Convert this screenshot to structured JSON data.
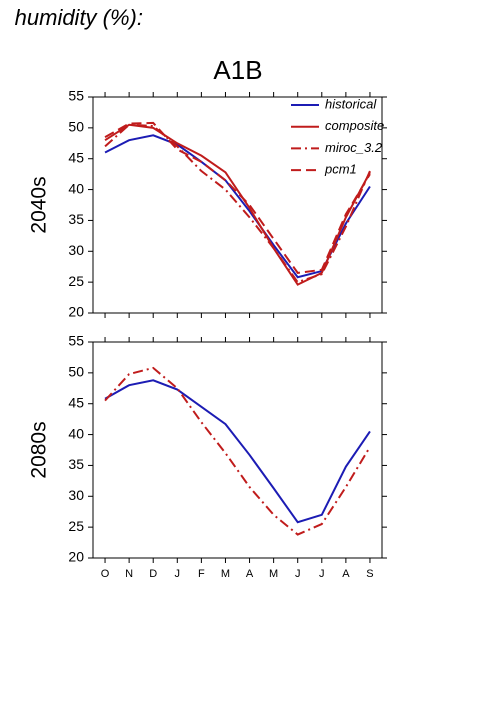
{
  "header": {
    "title": "humidity (%):",
    "subtitle": "A1B"
  },
  "chart_data": [
    {
      "type": "line",
      "ylabel": "2040s",
      "ylim": [
        20,
        55
      ],
      "yticks": [
        20,
        25,
        30,
        35,
        40,
        45,
        50,
        55
      ],
      "legend": "upper right",
      "series": [
        {
          "name": "historical",
          "color": "#1c1cb4",
          "dash": "solid",
          "values": [
            46,
            48,
            48.8,
            47.3,
            44.5,
            41.5,
            36.5,
            31,
            25.8,
            26.8,
            34.5,
            40.5
          ]
        },
        {
          "name": "composite",
          "color": "#c01c1c",
          "dash": "solid",
          "values": [
            48,
            50.5,
            50,
            47.5,
            45.5,
            42.8,
            37,
            30.5,
            24.6,
            26.5,
            35.5,
            42.8
          ]
        },
        {
          "name": "miroc_3.2",
          "color": "#c01c1c",
          "dash": "dashdot",
          "values": [
            47,
            50.5,
            50.3,
            47,
            43,
            40,
            35.5,
            30.5,
            25,
            26.3,
            34,
            43
          ]
        },
        {
          "name": "pcm1",
          "color": "#c01c1c",
          "dash": "dashed",
          "values": [
            48.5,
            50.7,
            50.8,
            46.5,
            44.5,
            41.5,
            37.5,
            32,
            26.5,
            27,
            36,
            42.5
          ]
        }
      ]
    },
    {
      "type": "line",
      "ylabel": "2080s",
      "ylim": [
        20,
        55
      ],
      "yticks": [
        20,
        25,
        30,
        35,
        40,
        45,
        50,
        55
      ],
      "categories": [
        "O",
        "N",
        "D",
        "J",
        "F",
        "M",
        "A",
        "M",
        "J",
        "J",
        "A",
        "S"
      ],
      "series": [
        {
          "color": "#1c1cb4",
          "dash": "solid",
          "values": [
            45.8,
            48,
            48.8,
            47.3,
            44.5,
            41.7,
            36.7,
            31.3,
            25.8,
            27,
            34.8,
            40.5
          ]
        },
        {
          "color": "#c01c1c",
          "dash": "dashdot",
          "values": [
            45.5,
            49.8,
            50.8,
            47.5,
            42,
            37,
            31.5,
            27,
            23.8,
            25.5,
            31.5,
            38
          ]
        }
      ]
    }
  ]
}
